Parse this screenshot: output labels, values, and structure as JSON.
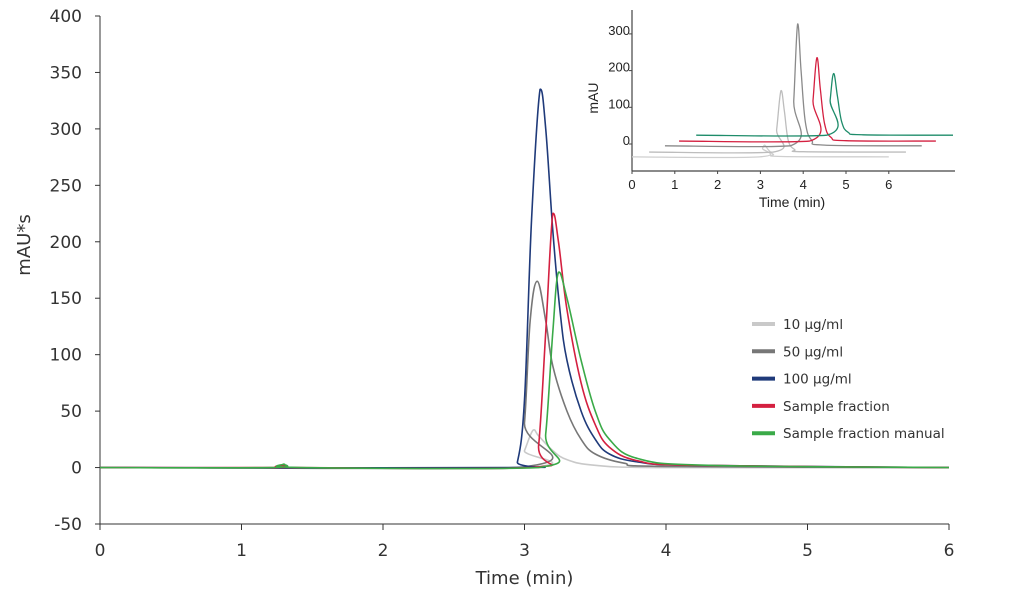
{
  "chart_data": [
    {
      "type": "line",
      "xlabel": "Time (min)",
      "ylabel": "mAU*s",
      "xlim": [
        0,
        6
      ],
      "ylim": [
        -50,
        400
      ],
      "xticks": [
        "0",
        "1",
        "2",
        "3",
        "4",
        "5",
        "6"
      ],
      "yticks": [
        "-50",
        "0",
        "50",
        "100",
        "150",
        "200",
        "250",
        "300",
        "350",
        "400"
      ],
      "grid": false,
      "legend_position": "right",
      "series": [
        {
          "name": "10 µg/ml",
          "color": "#c9c9c9",
          "points": [
            [
              0,
              0
            ],
            [
              2.95,
              0
            ],
            [
              3.0,
              15
            ],
            [
              3.06,
              33
            ],
            [
              3.1,
              28
            ],
            [
              3.2,
              15
            ],
            [
              3.3,
              7
            ],
            [
              3.5,
              2
            ],
            [
              4.0,
              0
            ],
            [
              6,
              0
            ]
          ]
        },
        {
          "name": "50 µg/ml",
          "color": "#777777",
          "points": [
            [
              0,
              0
            ],
            [
              2.95,
              0
            ],
            [
              3.0,
              40
            ],
            [
              3.04,
              130
            ],
            [
              3.09,
              165
            ],
            [
              3.15,
              130
            ],
            [
              3.2,
              90
            ],
            [
              3.3,
              50
            ],
            [
              3.4,
              25
            ],
            [
              3.5,
              12
            ],
            [
              3.7,
              4
            ],
            [
              4.0,
              1
            ],
            [
              6,
              0
            ]
          ]
        },
        {
          "name": "100 µg/ml",
          "color": "#1f3a7a",
          "points": [
            [
              0,
              0
            ],
            [
              2.9,
              0
            ],
            [
              2.95,
              5
            ],
            [
              3.0,
              60
            ],
            [
              3.05,
              220
            ],
            [
              3.11,
              335
            ],
            [
              3.15,
              300
            ],
            [
              3.2,
              210
            ],
            [
              3.25,
              140
            ],
            [
              3.3,
              95
            ],
            [
              3.4,
              50
            ],
            [
              3.5,
              25
            ],
            [
              3.6,
              12
            ],
            [
              3.8,
              5
            ],
            [
              4.2,
              2
            ],
            [
              6,
              0
            ]
          ]
        },
        {
          "name": "Sample fraction",
          "color": "#d42040",
          "points": [
            [
              0,
              0
            ],
            [
              1.2,
              0
            ],
            [
              1.3,
              2
            ],
            [
              1.4,
              0
            ],
            [
              3.05,
              0
            ],
            [
              3.1,
              20
            ],
            [
              3.15,
              120
            ],
            [
              3.2,
              225
            ],
            [
              3.24,
              200
            ],
            [
              3.3,
              140
            ],
            [
              3.4,
              75
            ],
            [
              3.5,
              38
            ],
            [
              3.6,
              18
            ],
            [
              3.8,
              6
            ],
            [
              4.2,
              2
            ],
            [
              6,
              0
            ]
          ]
        },
        {
          "name": "Sample fraction manual",
          "color": "#3aaa48",
          "points": [
            [
              0,
              0
            ],
            [
              1.2,
              0
            ],
            [
              1.3,
              3
            ],
            [
              1.42,
              0
            ],
            [
              3.1,
              0
            ],
            [
              3.15,
              30
            ],
            [
              3.2,
              120
            ],
            [
              3.24,
              173
            ],
            [
              3.3,
              150
            ],
            [
              3.4,
              95
            ],
            [
              3.5,
              50
            ],
            [
              3.6,
              25
            ],
            [
              3.8,
              8
            ],
            [
              4.3,
              2
            ],
            [
              6,
              0
            ]
          ]
        }
      ]
    },
    {
      "type": "line",
      "xlabel": "Time (min)",
      "ylabel": "mAU",
      "xlim": [
        0,
        7.5
      ],
      "ylim": [
        -70,
        350
      ],
      "xticks": [
        "0",
        "1",
        "2",
        "3",
        "4",
        "5",
        "6"
      ],
      "yticks": [
        "0",
        "100",
        "200",
        "300"
      ],
      "grid": false,
      "series": [
        {
          "color": "#cfcfcf",
          "points": [
            [
              0,
              -35
            ],
            [
              2.98,
              -35
            ],
            [
              3.05,
              -12
            ],
            [
              3.1,
              -3
            ],
            [
              3.18,
              -15
            ],
            [
              3.3,
              -28
            ],
            [
              3.5,
              -34
            ],
            [
              6,
              -35
            ]
          ]
        },
        {
          "color": "#bdbdbd",
          "points": [
            [
              0.4,
              -22
            ],
            [
              3.3,
              -22
            ],
            [
              3.38,
              40
            ],
            [
              3.48,
              145
            ],
            [
              3.56,
              90
            ],
            [
              3.65,
              10
            ],
            [
              3.8,
              -15
            ],
            [
              4.0,
              -21
            ],
            [
              6.4,
              -22
            ]
          ]
        },
        {
          "color": "#8a8a8a",
          "points": [
            [
              0.77,
              -5
            ],
            [
              3.7,
              -5
            ],
            [
              3.78,
              120
            ],
            [
              3.87,
              327
            ],
            [
              3.95,
              200
            ],
            [
              4.05,
              60
            ],
            [
              4.2,
              10
            ],
            [
              4.5,
              -3
            ],
            [
              6.77,
              -5
            ]
          ]
        },
        {
          "color": "#d42040",
          "points": [
            [
              1.1,
              8
            ],
            [
              4.15,
              8
            ],
            [
              4.23,
              120
            ],
            [
              4.32,
              235
            ],
            [
              4.4,
              150
            ],
            [
              4.5,
              55
            ],
            [
              4.65,
              18
            ],
            [
              5.0,
              9
            ],
            [
              7.1,
              8
            ]
          ]
        },
        {
          "color": "#1e8c6a",
          "points": [
            [
              1.5,
              24
            ],
            [
              4.55,
              24
            ],
            [
              4.63,
              120
            ],
            [
              4.71,
              192
            ],
            [
              4.8,
              130
            ],
            [
              4.9,
              60
            ],
            [
              5.05,
              32
            ],
            [
              5.4,
              25
            ],
            [
              7.5,
              24
            ]
          ]
        }
      ]
    }
  ]
}
